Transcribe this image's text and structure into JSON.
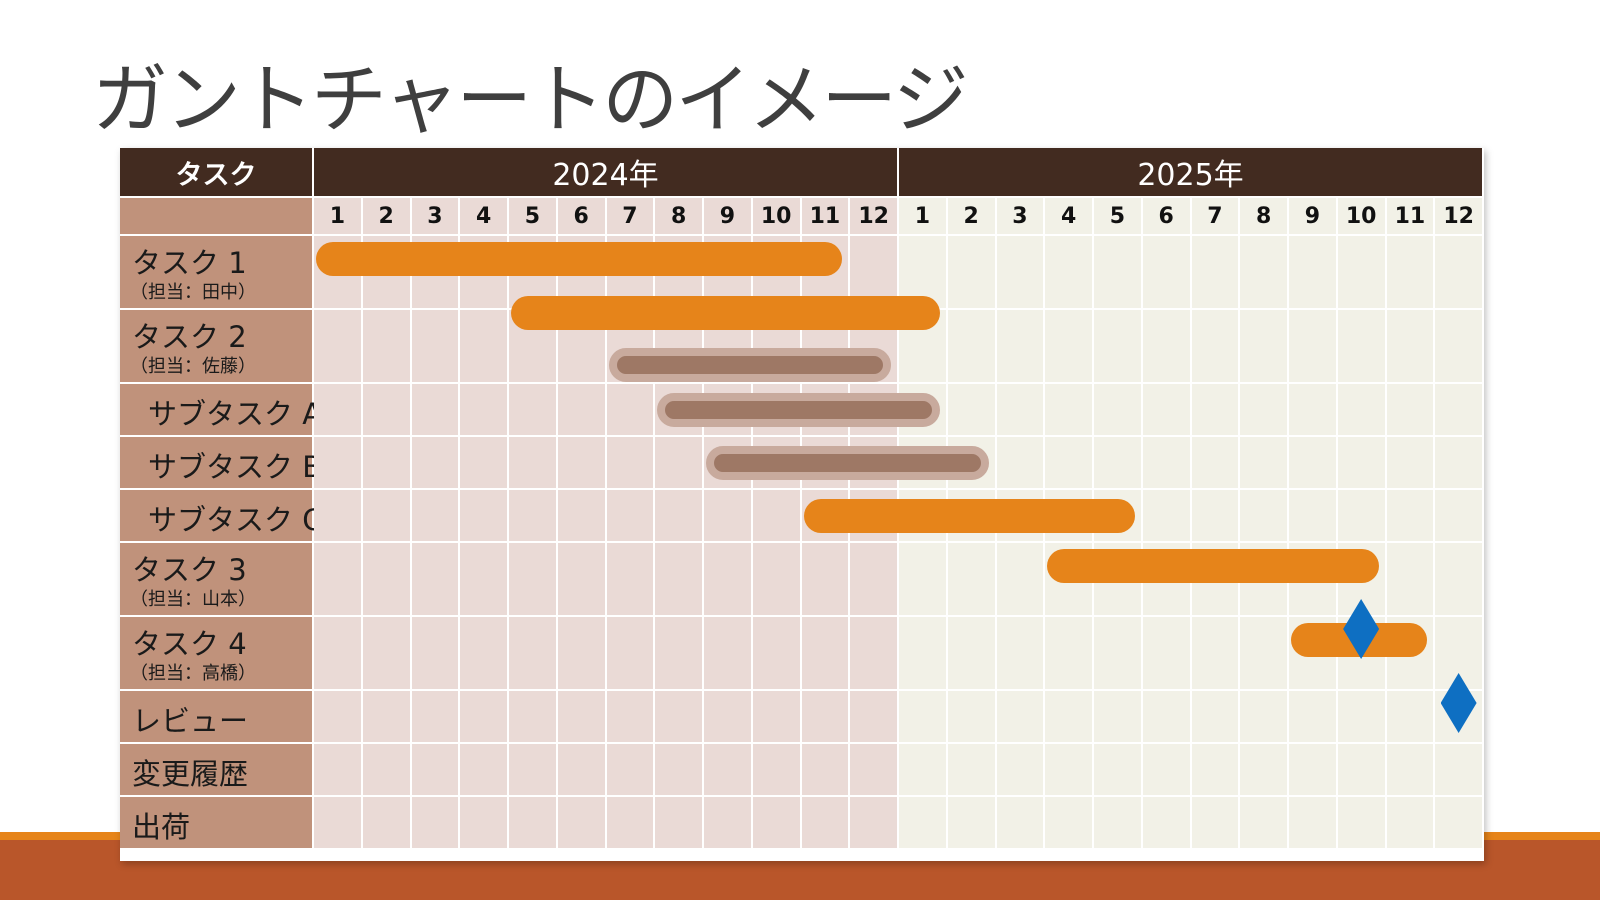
{
  "title": "ガントチャートのイメージ",
  "header": {
    "task_label": "タスク",
    "years": [
      "2024年",
      "2025年"
    ],
    "months": [
      "1",
      "2",
      "3",
      "4",
      "5",
      "6",
      "7",
      "8",
      "9",
      "10",
      "11",
      "12",
      "1",
      "2",
      "3",
      "4",
      "5",
      "6",
      "7",
      "8",
      "9",
      "10",
      "11",
      "12"
    ]
  },
  "tasks": [
    {
      "label": "タスク 1",
      "sub": "（担当：田中）",
      "indent": false
    },
    {
      "label": "タスク 2",
      "sub": "（担当：佐藤）",
      "indent": false
    },
    {
      "label": "サブタスク A",
      "sub": "",
      "indent": true
    },
    {
      "label": "サブタスク B",
      "sub": "",
      "indent": true
    },
    {
      "label": "サブタスク C",
      "sub": "",
      "indent": true
    },
    {
      "label": "タスク 3",
      "sub": "（担当：山本）",
      "indent": false
    },
    {
      "label": "タスク 4",
      "sub": "（担当：高橋）",
      "indent": false
    },
    {
      "label": "レビュー",
      "sub": "",
      "indent": false
    },
    {
      "label": "変更履歴",
      "sub": "",
      "indent": false
    },
    {
      "label": "出荷",
      "sub": "",
      "indent": false
    }
  ],
  "colors": {
    "header_bg": "#422b20",
    "task_bg": "#c0927b",
    "year2024_bg": "#eadad6",
    "year2025_bg": "#f2f1e7",
    "bar_orange": "#e6841a",
    "bar_brown": "#9e7865",
    "milestone": "#0e6fc2"
  },
  "chart_data": {
    "type": "gantt",
    "x_unit": "month",
    "x_range": [
      "2024-01",
      "2025-12"
    ],
    "bars": [
      {
        "row": 0,
        "start": "2024-01",
        "end": "2024-11",
        "style": "orange"
      },
      {
        "row": 0,
        "start": "2024-05",
        "end": "2025-01",
        "style": "orange",
        "offset": "lower"
      },
      {
        "row": 1,
        "start": "2024-07",
        "end": "2024-12",
        "style": "brown"
      },
      {
        "row": 2,
        "start": "2024-08",
        "end": "2025-01",
        "style": "brown"
      },
      {
        "row": 3,
        "start": "2024-09",
        "end": "2025-02",
        "style": "brown"
      },
      {
        "row": 4,
        "start": "2024-11",
        "end": "2025-05",
        "style": "orange"
      },
      {
        "row": 5,
        "start": "2025-04",
        "end": "2025-10",
        "style": "orange"
      },
      {
        "row": 6,
        "start": "2025-09",
        "end": "2025-11",
        "style": "orange"
      }
    ],
    "milestones": [
      {
        "row": 6,
        "date": "2025-10"
      },
      {
        "row": 7,
        "date": "2025-12"
      }
    ]
  }
}
